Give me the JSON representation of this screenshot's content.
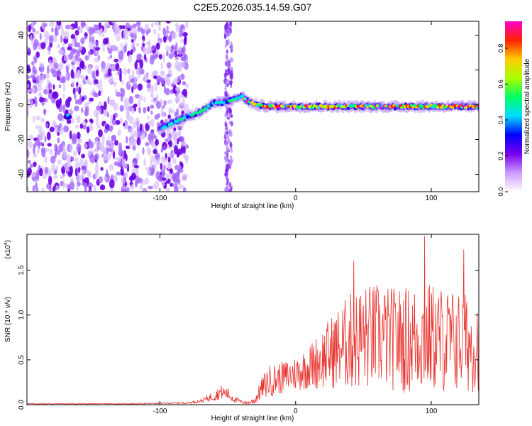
{
  "title": "C2E5.2026.035.14.59.G07",
  "chart_data": [
    {
      "type": "heatmap",
      "xlabel": "Height of straight line (km)",
      "ylabel": "Frequency (Hz)",
      "xlim": [
        -198,
        135
      ],
      "ylim": [
        -50,
        48
      ],
      "xticks": [
        -100,
        0,
        100
      ],
      "xtick_labels": [
        "-100",
        "0",
        "100"
      ],
      "yticks": [
        -40,
        -20,
        0,
        20,
        40
      ],
      "ytick_labels": [
        "-40",
        "-20",
        "0",
        "20",
        "40"
      ],
      "colorbar": {
        "label": "Normalized spectral amplitude",
        "range": [
          0,
          0.95
        ],
        "ticks": [
          0.0,
          0.2,
          0.4,
          0.6,
          0.8
        ],
        "tick_labels": [
          "0.0",
          "0.2",
          "0.4",
          "0.6",
          "0.8"
        ],
        "colors": [
          "#ffffff",
          "#cc99ff",
          "#7700ee",
          "#0000ff",
          "#00ddff",
          "#00ff66",
          "#aaff00",
          "#ffcc00",
          "#ff2200",
          "#ff00cc"
        ]
      },
      "signal_track": {
        "x": [
          -100,
          -90,
          -80,
          -70,
          -60,
          -50,
          -45,
          -40,
          -35,
          -30,
          -20,
          -10,
          0,
          20,
          40,
          60,
          80,
          100,
          120,
          135
        ],
        "freq": [
          -14,
          -10,
          -7,
          -4,
          1,
          2,
          3,
          5,
          2,
          0,
          -1,
          -1,
          -1,
          -1,
          -1,
          -1,
          -1,
          -1,
          -1,
          -1
        ]
      },
      "noise_region_x": [
        -198,
        -80
      ],
      "vertical_stripe_x": [
        -52,
        -47
      ]
    },
    {
      "type": "line",
      "xlabel": "Height of straight line (km)",
      "ylabel": "SNR (10 * v/v)",
      "y_multiplier": "(x10",
      "y_multiplier_exp": "4",
      "y_multiplier_close": ")",
      "xlim": [
        -198,
        135
      ],
      "ylim": [
        0,
        1.9
      ],
      "xticks": [
        -100,
        0,
        100
      ],
      "xtick_labels": [
        "-100",
        "0",
        "100"
      ],
      "yticks": [
        0,
        0.5,
        1.0,
        1.5
      ],
      "ytick_labels": [
        "0.0",
        "0.5",
        "1.0",
        "1.5"
      ],
      "line_color": "#e8322c",
      "envelope": {
        "x": [
          -198,
          -120,
          -80,
          -70,
          -60,
          -55,
          -50,
          -45,
          -40,
          -35,
          -30,
          -25,
          -20,
          -10,
          0,
          10,
          20,
          30,
          40,
          50,
          60,
          70,
          80,
          90,
          100,
          110,
          120,
          130,
          135
        ],
        "mean": [
          0.01,
          0.01,
          0.02,
          0.04,
          0.1,
          0.14,
          0.12,
          0.06,
          0.03,
          0.02,
          0.05,
          0.18,
          0.26,
          0.3,
          0.35,
          0.42,
          0.52,
          0.62,
          0.7,
          0.75,
          0.76,
          0.74,
          0.72,
          0.74,
          0.75,
          0.72,
          0.7,
          0.68,
          0.7
        ],
        "amplitude": [
          0.005,
          0.005,
          0.01,
          0.02,
          0.06,
          0.08,
          0.07,
          0.04,
          0.02,
          0.015,
          0.05,
          0.12,
          0.18,
          0.18,
          0.2,
          0.25,
          0.35,
          0.45,
          0.55,
          0.6,
          0.6,
          0.58,
          0.6,
          0.62,
          0.62,
          0.6,
          0.58,
          0.55,
          0.55
        ]
      },
      "peaks": [
        {
          "x": 43,
          "y": 1.6
        },
        {
          "x": 95,
          "y": 1.88
        },
        {
          "x": 124,
          "y": 1.73
        }
      ]
    }
  ]
}
